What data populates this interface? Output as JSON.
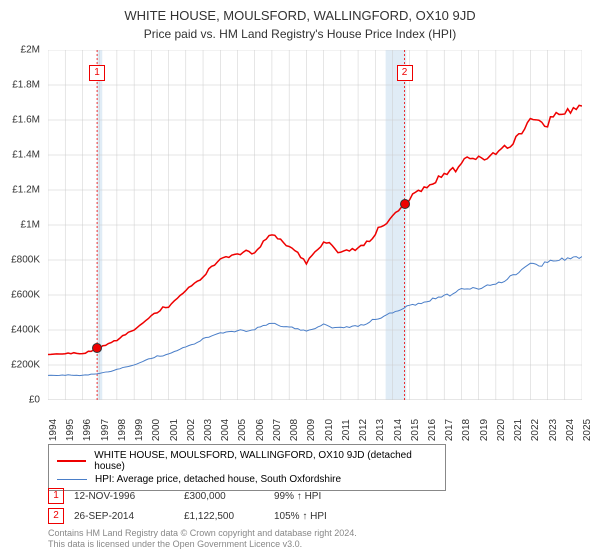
{
  "title": "WHITE HOUSE, MOULSFORD, WALLINGFORD, OX10 9JD",
  "subtitle": "Price paid vs. HM Land Registry's House Price Index (HPI)",
  "chart": {
    "type": "line",
    "background_color": "#ffffff",
    "grid_color": "#cccccc",
    "shaded_color": "#e0ecf6",
    "xlim_years": [
      1994,
      2025
    ],
    "ylim": [
      0,
      2000000
    ],
    "ytick_step": 200000,
    "y_labels": [
      "£0",
      "£200K",
      "£400K",
      "£600K",
      "£800K",
      "£1M",
      "£1.2M",
      "£1.4M",
      "£1.6M",
      "£1.8M",
      "£2M"
    ],
    "x_years": [
      1994,
      1995,
      1996,
      1997,
      1998,
      1999,
      2000,
      2001,
      2002,
      2003,
      2004,
      2005,
      2006,
      2007,
      2008,
      2009,
      2010,
      2011,
      2012,
      2013,
      2014,
      2015,
      2016,
      2017,
      2018,
      2019,
      2020,
      2021,
      2022,
      2023,
      2024,
      2025
    ],
    "shaded_ranges": [
      [
        1996.85,
        1997.15
      ],
      [
        2013.6,
        2014.8
      ]
    ],
    "series": [
      {
        "name": "WHITE HOUSE, MOULSFORD, WALLINGFORD, OX10 9JD (detached house)",
        "color": "#ee0000",
        "line_width": 1.5,
        "points": [
          [
            1994,
            260000
          ],
          [
            1995,
            265000
          ],
          [
            1996,
            270000
          ],
          [
            1996.85,
            300000
          ],
          [
            1998,
            350000
          ],
          [
            1999,
            400000
          ],
          [
            2000,
            480000
          ],
          [
            2001,
            550000
          ],
          [
            2002,
            640000
          ],
          [
            2003,
            720000
          ],
          [
            2004,
            800000
          ],
          [
            2005,
            830000
          ],
          [
            2006,
            870000
          ],
          [
            2007,
            970000
          ],
          [
            2008,
            900000
          ],
          [
            2009,
            780000
          ],
          [
            2010,
            900000
          ],
          [
            2011,
            870000
          ],
          [
            2012,
            890000
          ],
          [
            2013,
            960000
          ],
          [
            2014,
            1050000
          ],
          [
            2014.7,
            1122500
          ],
          [
            2015,
            1150000
          ],
          [
            2016,
            1250000
          ],
          [
            2017,
            1320000
          ],
          [
            2018,
            1370000
          ],
          [
            2019,
            1380000
          ],
          [
            2020,
            1400000
          ],
          [
            2021,
            1500000
          ],
          [
            2022,
            1650000
          ],
          [
            2023,
            1620000
          ],
          [
            2024,
            1640000
          ],
          [
            2025,
            1680000
          ]
        ]
      },
      {
        "name": "HPI: Average price, detached house, South Oxfordshire",
        "color": "#4a7ec8",
        "line_width": 1,
        "points": [
          [
            1994,
            140000
          ],
          [
            1995,
            142000
          ],
          [
            1996,
            145000
          ],
          [
            1997,
            155000
          ],
          [
            1998,
            175000
          ],
          [
            1999,
            200000
          ],
          [
            2000,
            240000
          ],
          [
            2001,
            270000
          ],
          [
            2002,
            310000
          ],
          [
            2003,
            350000
          ],
          [
            2004,
            380000
          ],
          [
            2005,
            395000
          ],
          [
            2006,
            415000
          ],
          [
            2007,
            450000
          ],
          [
            2008,
            420000
          ],
          [
            2009,
            390000
          ],
          [
            2010,
            430000
          ],
          [
            2011,
            425000
          ],
          [
            2012,
            435000
          ],
          [
            2013,
            460000
          ],
          [
            2014,
            500000
          ],
          [
            2015,
            540000
          ],
          [
            2016,
            580000
          ],
          [
            2017,
            610000
          ],
          [
            2018,
            630000
          ],
          [
            2019,
            640000
          ],
          [
            2020,
            660000
          ],
          [
            2021,
            730000
          ],
          [
            2022,
            800000
          ],
          [
            2023,
            790000
          ],
          [
            2024,
            805000
          ],
          [
            2025,
            820000
          ]
        ]
      }
    ],
    "sale_markers": [
      {
        "num": "1",
        "year": 1996.85,
        "value": 300000,
        "label_y": 65
      },
      {
        "num": "2",
        "year": 2014.7,
        "value": 1122500,
        "label_y": 65
      }
    ]
  },
  "legend": {
    "rows": [
      {
        "color": "#ee0000",
        "width": 2,
        "label": "WHITE HOUSE, MOULSFORD, WALLINGFORD, OX10 9JD (detached house)"
      },
      {
        "color": "#4a7ec8",
        "width": 1,
        "label": "HPI: Average price, detached house, South Oxfordshire"
      }
    ]
  },
  "sales": [
    {
      "num": "1",
      "date": "12-NOV-1996",
      "price": "£300,000",
      "hpi": "99% ↑ HPI"
    },
    {
      "num": "2",
      "date": "26-SEP-2014",
      "price": "£1,122,500",
      "hpi": "105% ↑ HPI"
    }
  ],
  "attribution": {
    "line1": "Contains HM Land Registry data © Crown copyright and database right 2024.",
    "line2": "This data is licensed under the Open Government Licence v3.0."
  }
}
